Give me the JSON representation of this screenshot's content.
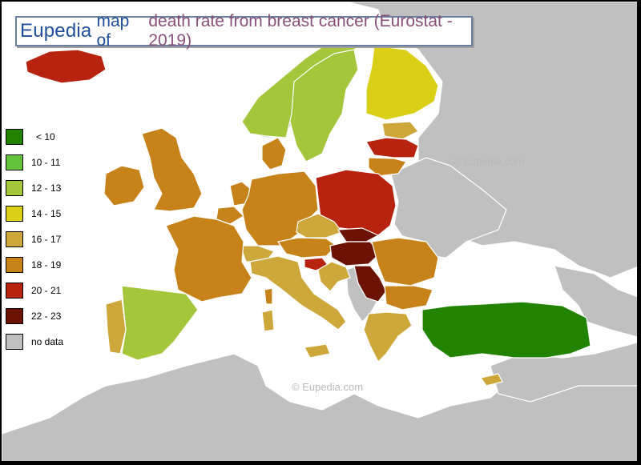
{
  "title": {
    "brand": "Eupedia",
    "map_of": "map of",
    "description": "death rate from breast cancer (Eurostat - 2019)"
  },
  "legend": [
    {
      "label": "< 10",
      "color": "#218300"
    },
    {
      "label": "10 - 11",
      "color": "#63c43b"
    },
    {
      "label": "12 - 13",
      "color": "#a3c63a"
    },
    {
      "label": "14 - 15",
      "color": "#d8cf16"
    },
    {
      "label": "16 - 17",
      "color": "#cda73a"
    },
    {
      "label": "18 - 19",
      "color": "#c8821a"
    },
    {
      "label": "20 - 21",
      "color": "#b8230f"
    },
    {
      "label": "22 - 23",
      "color": "#6c1306"
    },
    {
      "label": "no data",
      "color": "#c0c0c0"
    }
  ],
  "watermarks": [
    "© Eupedia.com",
    "© Eupedia.com"
  ],
  "colors": {
    "no_data": "#c0c0c0",
    "sea": "#ffffff",
    "title_border": "#6a7fa2"
  }
}
